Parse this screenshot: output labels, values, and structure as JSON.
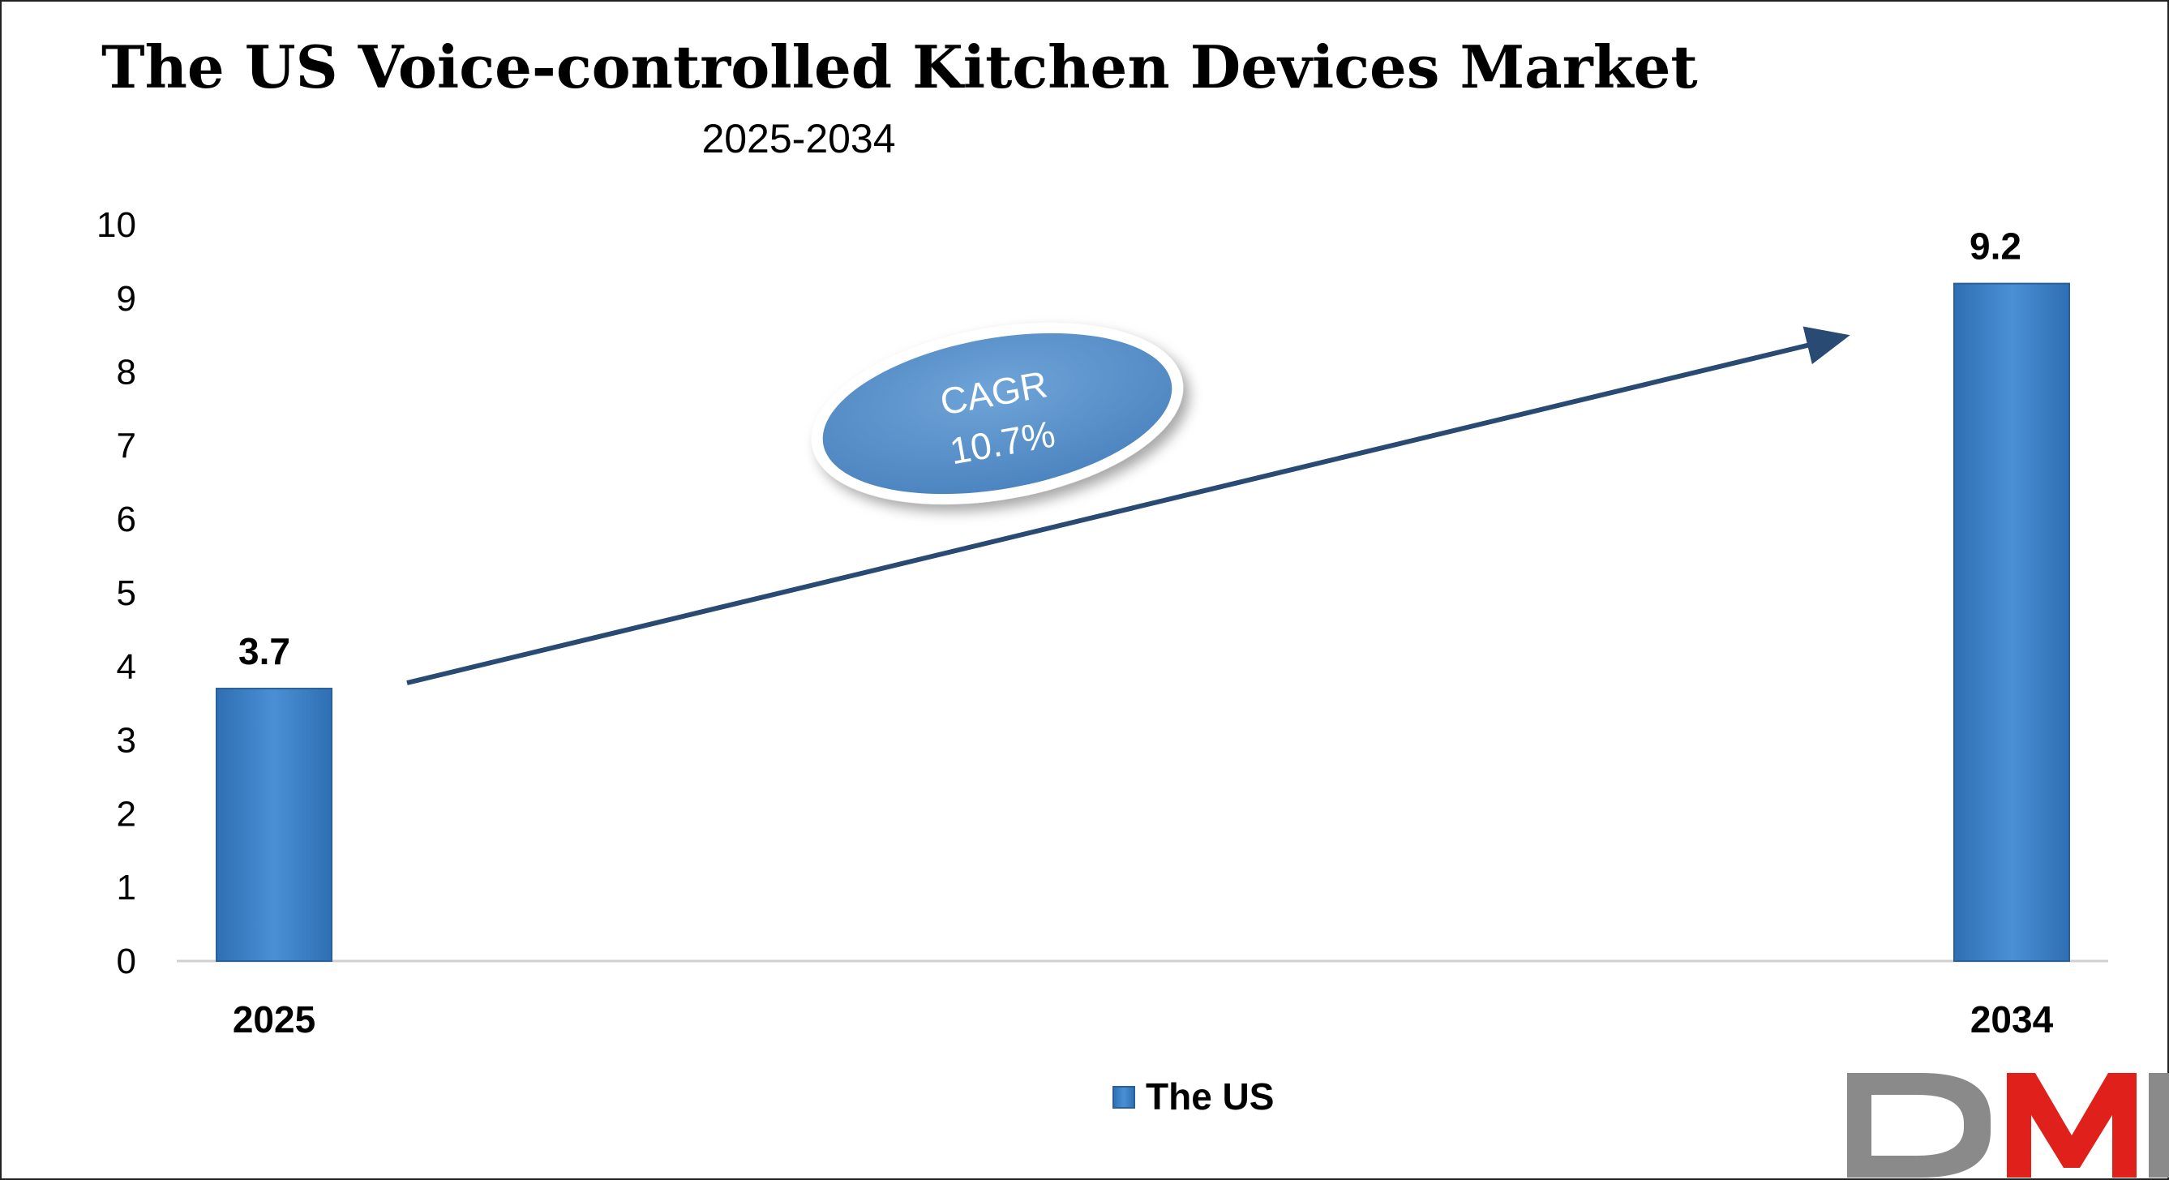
{
  "chart_data": {
    "type": "bar",
    "title": "The US Voice-controlled Kitchen Devices Market",
    "subtitle": "2025-2034",
    "categories": [
      "2025",
      "2034"
    ],
    "series": [
      {
        "name": "The US",
        "values": [
          3.7,
          9.2
        ],
        "color": "#3a7ec4"
      }
    ],
    "data_labels": [
      "3.7",
      "9.2"
    ],
    "ylim": [
      0,
      10
    ],
    "yticks": [
      0,
      1,
      2,
      3,
      4,
      5,
      6,
      7,
      8,
      9,
      10
    ],
    "grid": false,
    "legend_position": "bottom-center",
    "annotation": {
      "line1": "CAGR",
      "line2": "10.7%"
    }
  },
  "logo": {
    "text": "DMR",
    "colors": [
      "#8a8a8a",
      "#e0201a",
      "#8a8a8a"
    ]
  },
  "colors": {
    "arrow": "#284a73",
    "ellipse": "#5b92c8",
    "axis": "#d0d0d0"
  }
}
